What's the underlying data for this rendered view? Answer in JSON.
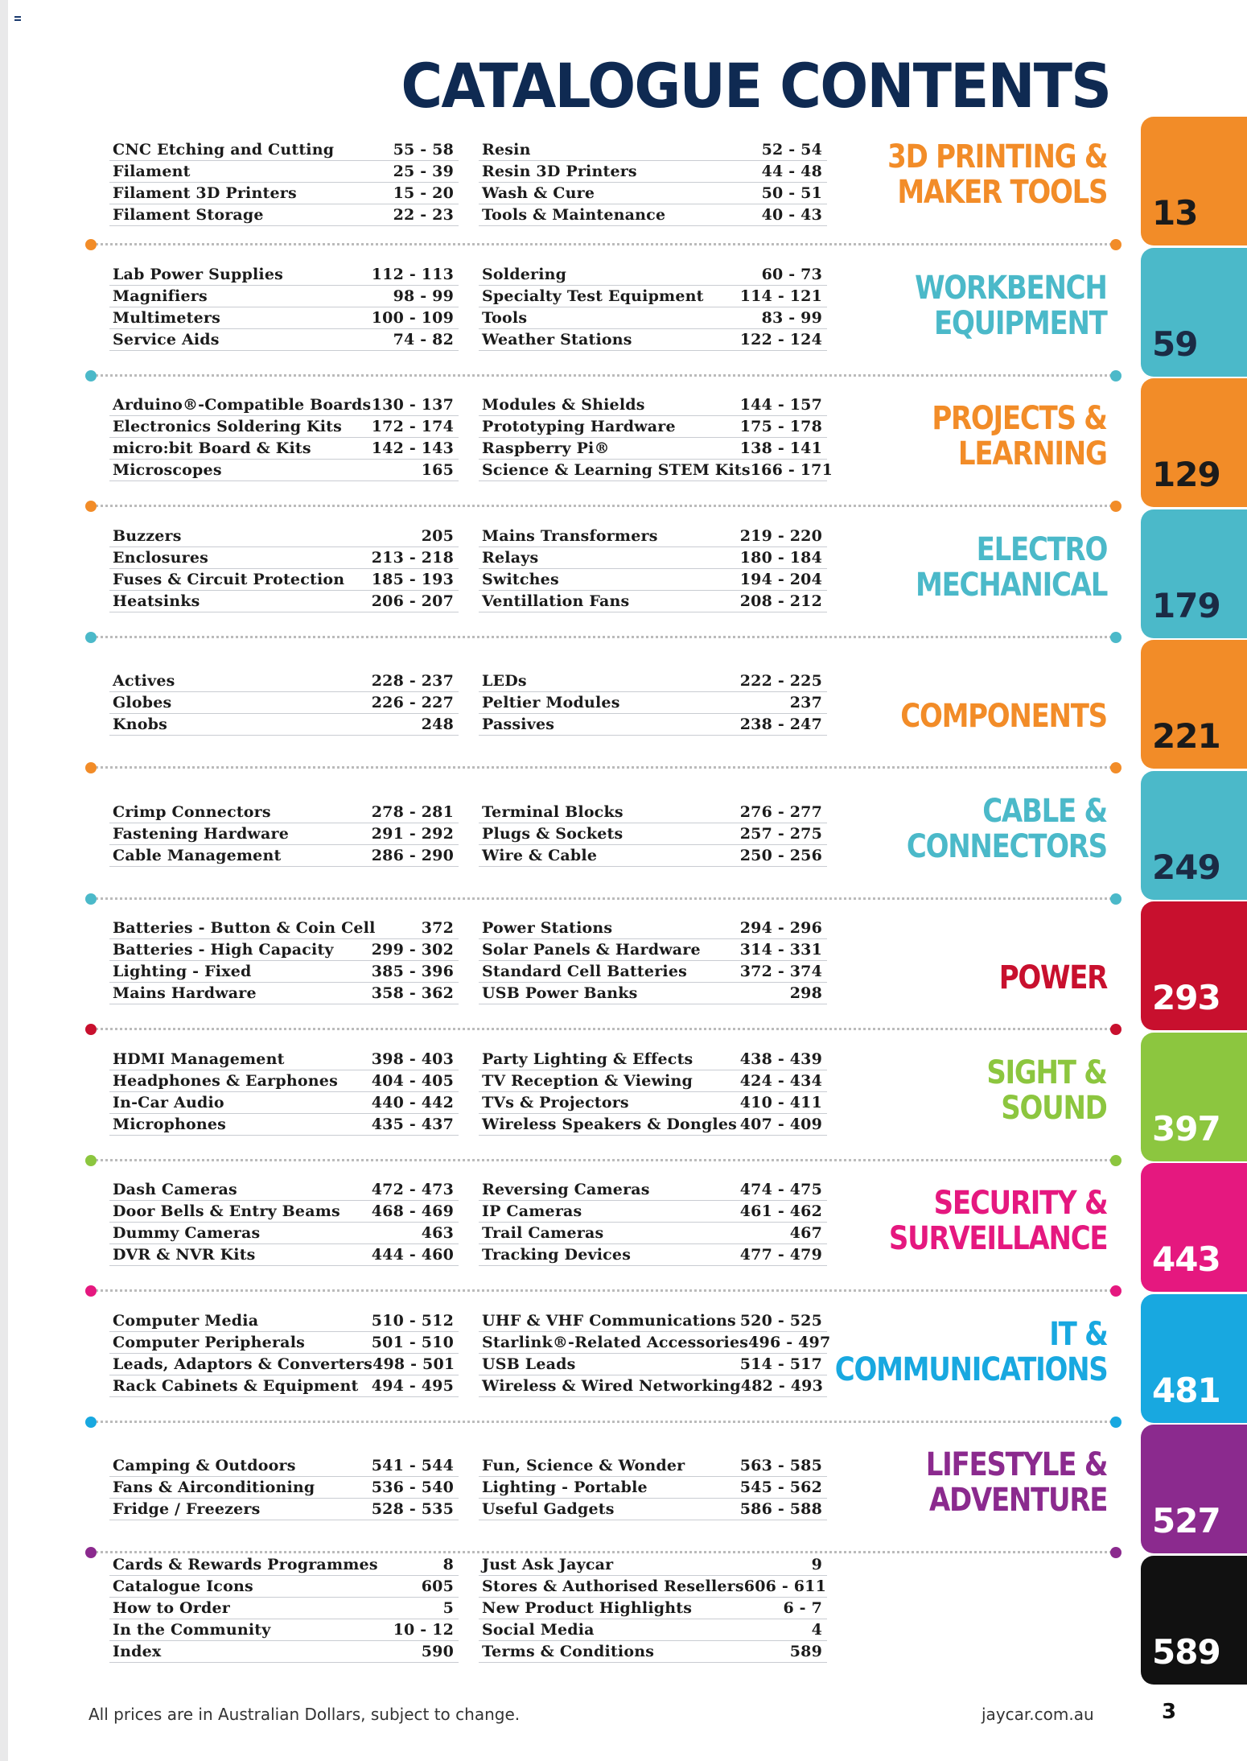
{
  "page": {
    "title": "CATALOGUE CONTENTS",
    "footer_note": "All prices are in Australian Dollars, subject to change.",
    "website": "jaycar.com.au",
    "page_number": "3"
  },
  "sections": [
    {
      "title_lines": [
        "3D PRINTING &",
        "MAKER TOOLS"
      ],
      "tab_number": "13",
      "color": "#f28c28",
      "tab_color": "#f28c28",
      "tab_text_color": "#1b1b1b",
      "left": [
        {
          "name": "CNC Etching and Cutting",
          "pages": "55 - 58"
        },
        {
          "name": "Filament",
          "pages": "25 - 39"
        },
        {
          "name": "Filament 3D Printers",
          "pages": "15 - 20"
        },
        {
          "name": "Filament Storage",
          "pages": "22 - 23"
        }
      ],
      "right": [
        {
          "name": "Resin",
          "pages": "52 - 54"
        },
        {
          "name": "Resin 3D Printers",
          "pages": "44 - 48"
        },
        {
          "name": "Wash & Cure",
          "pages": "50 - 51"
        },
        {
          "name": "Tools & Maintenance",
          "pages": "40 - 43"
        }
      ]
    },
    {
      "title_lines": [
        "WORKBENCH",
        "EQUIPMENT"
      ],
      "tab_number": "59",
      "color": "#4bb9c9",
      "tab_color": "#4bb9c9",
      "tab_text_color": "#1b2b45",
      "left": [
        {
          "name": "Lab Power Supplies",
          "pages": "112 - 113"
        },
        {
          "name": "Magnifiers",
          "pages": "98 - 99"
        },
        {
          "name": "Multimeters",
          "pages": "100 - 109"
        },
        {
          "name": "Service Aids",
          "pages": "74 - 82"
        }
      ],
      "right": [
        {
          "name": "Soldering",
          "pages": "60 - 73"
        },
        {
          "name": "Specialty Test Equipment",
          "pages": "114 - 121"
        },
        {
          "name": "Tools",
          "pages": "83 - 99"
        },
        {
          "name": "Weather Stations",
          "pages": "122 - 124"
        }
      ]
    },
    {
      "title_lines": [
        "PROJECTS &",
        "LEARNING"
      ],
      "tab_number": "129",
      "color": "#f28c28",
      "tab_color": "#f28c28",
      "tab_text_color": "#1b1b1b",
      "left": [
        {
          "name": "Arduino®-Compatible Boards",
          "pages": "130 - 137"
        },
        {
          "name": "Electronics Soldering Kits",
          "pages": "172 - 174"
        },
        {
          "name": "micro:bit Board & Kits",
          "pages": "142 - 143"
        },
        {
          "name": "Microscopes",
          "pages": "165"
        }
      ],
      "right": [
        {
          "name": "Modules & Shields",
          "pages": "144 - 157"
        },
        {
          "name": "Prototyping Hardware",
          "pages": "175 - 178"
        },
        {
          "name": "Raspberry Pi®",
          "pages": "138 - 141"
        },
        {
          "name": "Science & Learning STEM Kits",
          "pages": "166 - 171"
        }
      ]
    },
    {
      "title_lines": [
        "ELECTRO",
        "MECHANICAL"
      ],
      "tab_number": "179",
      "color": "#4bb9c9",
      "tab_color": "#4bb9c9",
      "tab_text_color": "#1b2b45",
      "left": [
        {
          "name": "Buzzers",
          "pages": "205"
        },
        {
          "name": "Enclosures",
          "pages": "213 - 218"
        },
        {
          "name": "Fuses & Circuit Protection",
          "pages": "185 - 193"
        },
        {
          "name": "Heatsinks",
          "pages": "206 - 207"
        }
      ],
      "right": [
        {
          "name": "Mains Transformers",
          "pages": "219 - 220"
        },
        {
          "name": "Relays",
          "pages": "180 - 184"
        },
        {
          "name": "Switches",
          "pages": "194 - 204"
        },
        {
          "name": "Ventillation Fans",
          "pages": "208 - 212"
        }
      ]
    },
    {
      "title_lines": [
        "COMPONENTS"
      ],
      "tab_number": "221",
      "color": "#f28c28",
      "tab_color": "#f28c28",
      "tab_text_color": "#1b1b1b",
      "left": [
        {
          "name": "Actives",
          "pages": "228 - 237"
        },
        {
          "name": "Globes",
          "pages": "226 - 227"
        },
        {
          "name": "Knobs",
          "pages": "248"
        }
      ],
      "right": [
        {
          "name": "LEDs",
          "pages": "222 - 225"
        },
        {
          "name": "Peltier Modules",
          "pages": "237"
        },
        {
          "name": "Passives",
          "pages": "238 - 247"
        }
      ]
    },
    {
      "title_lines": [
        "CABLE &",
        "CONNECTORS"
      ],
      "tab_number": "249",
      "color": "#4bb9c9",
      "tab_color": "#4bb9c9",
      "tab_text_color": "#1b2b45",
      "left": [
        {
          "name": "Crimp Connectors",
          "pages": "278 - 281"
        },
        {
          "name": "Fastening Hardware",
          "pages": "291 - 292"
        },
        {
          "name": "Cable Management",
          "pages": "286 - 290"
        }
      ],
      "right": [
        {
          "name": "Terminal Blocks",
          "pages": "276 - 277"
        },
        {
          "name": "Plugs & Sockets",
          "pages": "257 - 275"
        },
        {
          "name": "Wire & Cable",
          "pages": "250 - 256"
        }
      ]
    },
    {
      "title_lines": [
        "POWER"
      ],
      "tab_number": "293",
      "color": "#c8102e",
      "tab_color": "#c8102e",
      "tab_text_color": "#ffffff",
      "left": [
        {
          "name": "Batteries - Button & Coin Cell",
          "pages": "372"
        },
        {
          "name": "Batteries - High Capacity",
          "pages": "299 - 302"
        },
        {
          "name": "Lighting - Fixed",
          "pages": "385 - 396"
        },
        {
          "name": "Mains Hardware",
          "pages": "358 - 362"
        }
      ],
      "right": [
        {
          "name": "Power Stations",
          "pages": "294 - 296"
        },
        {
          "name": "Solar Panels & Hardware",
          "pages": "314 - 331"
        },
        {
          "name": "Standard Cell Batteries",
          "pages": "372 - 374"
        },
        {
          "name": "USB Power Banks",
          "pages": "298"
        }
      ]
    },
    {
      "title_lines": [
        "SIGHT &",
        "SOUND"
      ],
      "tab_number": "397",
      "color": "#8cc63f",
      "tab_color": "#8cc63f",
      "tab_text_color": "#ffffff",
      "left": [
        {
          "name": "HDMI Management",
          "pages": "398 - 403"
        },
        {
          "name": "Headphones & Earphones",
          "pages": "404 - 405"
        },
        {
          "name": "In-Car Audio",
          "pages": "440 - 442"
        },
        {
          "name": "Microphones",
          "pages": "435 - 437"
        }
      ],
      "right": [
        {
          "name": "Party Lighting & Effects",
          "pages": "438 - 439"
        },
        {
          "name": "TV Reception & Viewing",
          "pages": "424 - 434"
        },
        {
          "name": "TVs & Projectors",
          "pages": "410 - 411"
        },
        {
          "name": "Wireless Speakers & Dongles",
          "pages": "407 - 409"
        }
      ]
    },
    {
      "title_lines": [
        "SECURITY &",
        "SURVEILLANCE"
      ],
      "tab_number": "443",
      "color": "#e5187f",
      "tab_color": "#e5187f",
      "tab_text_color": "#ffffff",
      "left": [
        {
          "name": "Dash Cameras",
          "pages": "472 - 473"
        },
        {
          "name": "Door Bells & Entry Beams",
          "pages": "468 - 469"
        },
        {
          "name": "Dummy Cameras",
          "pages": "463"
        },
        {
          "name": "DVR & NVR Kits",
          "pages": "444 - 460"
        }
      ],
      "right": [
        {
          "name": "Reversing Cameras",
          "pages": "474 - 475"
        },
        {
          "name": "IP Cameras",
          "pages": "461 - 462"
        },
        {
          "name": "Trail Cameras",
          "pages": "467"
        },
        {
          "name": "Tracking Devices",
          "pages": "477 - 479"
        }
      ]
    },
    {
      "title_lines": [
        "IT &",
        "COMMUNICATIONS"
      ],
      "tab_number": "481",
      "color": "#18a8e0",
      "tab_color": "#18a8e0",
      "tab_text_color": "#ffffff",
      "left": [
        {
          "name": "Computer Media",
          "pages": "510 - 512"
        },
        {
          "name": "Computer Peripherals",
          "pages": "501 - 510"
        },
        {
          "name": "Leads, Adaptors & Converters",
          "pages": "498 - 501"
        },
        {
          "name": "Rack Cabinets & Equipment",
          "pages": "494 - 495"
        }
      ],
      "right": [
        {
          "name": "UHF & VHF Communications",
          "pages": "520 - 525"
        },
        {
          "name": "Starlink®-Related Accessories",
          "pages": "496 - 497"
        },
        {
          "name": "USB Leads",
          "pages": "514 - 517"
        },
        {
          "name": "Wireless & Wired Networking",
          "pages": "482 - 493"
        }
      ]
    },
    {
      "title_lines": [
        "LIFESTYLE &",
        "ADVENTURE"
      ],
      "tab_number": "527",
      "color": "#8b2a8e",
      "tab_color": "#8b2a8e",
      "tab_text_color": "#ffffff",
      "left": [
        {
          "name": "Camping & Outdoors",
          "pages": "541 - 544"
        },
        {
          "name": "Fans & Airconditioning",
          "pages": "536 - 540"
        },
        {
          "name": "Fridge / Freezers",
          "pages": "528 - 535"
        }
      ],
      "right": [
        {
          "name": "Fun, Science & Wonder",
          "pages": "563 - 585"
        },
        {
          "name": "Lighting - Portable",
          "pages": "545 - 562"
        },
        {
          "name": "Useful Gadgets",
          "pages": "586 - 588"
        }
      ]
    },
    {
      "title_lines": [],
      "tab_number": "589",
      "color": "#111111",
      "tab_color": "#111111",
      "tab_text_color": "#ffffff",
      "left": [
        {
          "name": "Cards & Rewards Programmes",
          "pages": "8"
        },
        {
          "name": "Catalogue Icons",
          "pages": "605"
        },
        {
          "name": "How to Order",
          "pages": "5"
        },
        {
          "name": "In the Community",
          "pages": "10 - 12"
        },
        {
          "name": "Index",
          "pages": "590"
        }
      ],
      "right": [
        {
          "name": "Just Ask Jaycar",
          "pages": "9"
        },
        {
          "name": "Stores & Authorised Resellers",
          "pages": "606 - 611"
        },
        {
          "name": "New Product Highlights",
          "pages": "6 - 7"
        },
        {
          "name": "Social Media",
          "pages": "4"
        },
        {
          "name": "Terms & Conditions",
          "pages": "589"
        }
      ]
    }
  ]
}
